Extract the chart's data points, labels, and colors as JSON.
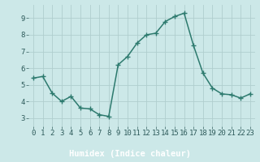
{
  "x": [
    0,
    1,
    2,
    3,
    4,
    5,
    6,
    7,
    8,
    9,
    10,
    11,
    12,
    13,
    14,
    15,
    16,
    17,
    18,
    19,
    20,
    21,
    22,
    23
  ],
  "y": [
    5.4,
    5.5,
    4.5,
    4.0,
    4.3,
    3.6,
    3.55,
    3.2,
    3.1,
    6.2,
    6.7,
    7.5,
    8.0,
    8.1,
    8.8,
    9.1,
    9.3,
    7.35,
    5.7,
    4.8,
    4.45,
    4.4,
    4.2,
    4.45
  ],
  "line_color": "#2d7a6e",
  "marker": "+",
  "marker_size": 4,
  "bg_color": "#cce8e8",
  "grid_color": "#b0cece",
  "axis_bg": "#cce8e8",
  "xlabel": "Humidex (Indice chaleur)",
  "tick_color": "#2d5a5a",
  "tick_fontsize": 6.5,
  "ylim": [
    2.5,
    9.8
  ],
  "xlim": [
    -0.5,
    23.5
  ],
  "yticks": [
    3,
    4,
    5,
    6,
    7,
    8,
    9
  ],
  "xticks": [
    0,
    1,
    2,
    3,
    4,
    5,
    6,
    7,
    8,
    9,
    10,
    11,
    12,
    13,
    14,
    15,
    16,
    17,
    18,
    19,
    20,
    21,
    22,
    23
  ],
  "line_width": 1.1,
  "bottom_bar_color": "#2d5a5a",
  "xlabel_fontsize": 7.5
}
